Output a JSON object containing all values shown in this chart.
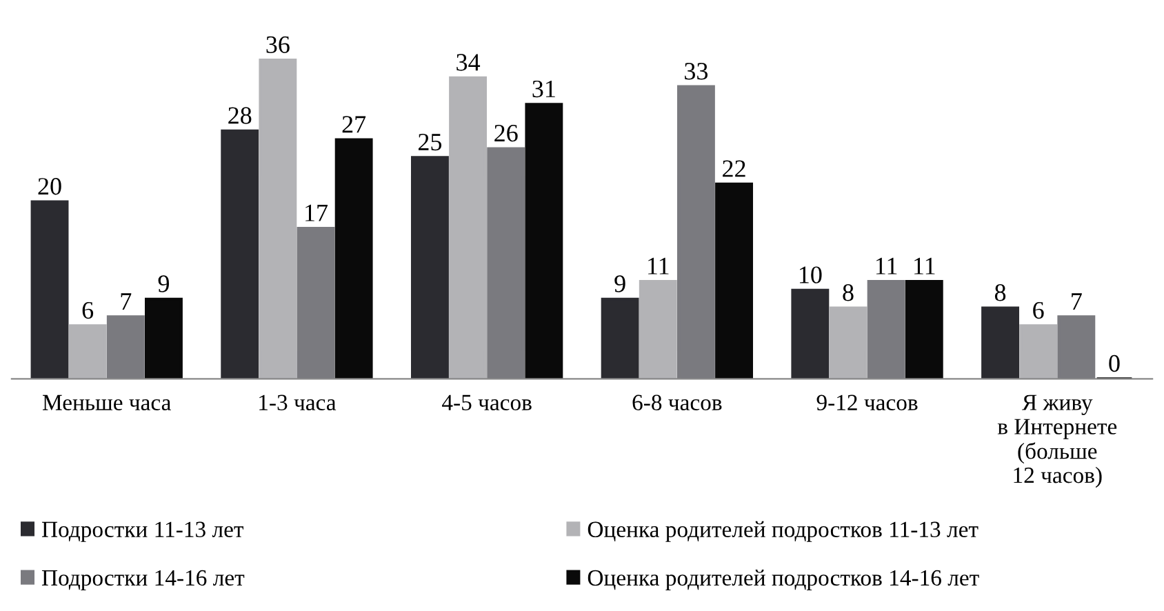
{
  "chart_data": {
    "type": "bar",
    "categories": [
      "Меньше часа",
      "1-3 часа",
      "4-5 часов",
      "6-8 часов",
      "9-12 часов",
      "Я живу\nв Интернете\n(больше\n12 часов)"
    ],
    "series": [
      {
        "name": "Подростки 11-13 лет",
        "color": "#2b2b30",
        "values": [
          20,
          28,
          25,
          9,
          10,
          8
        ]
      },
      {
        "name": "Оценка родителей подростков 11-13 лет",
        "color": "#b3b3b6",
        "values": [
          6,
          36,
          34,
          11,
          8,
          6
        ]
      },
      {
        "name": "Подростки 14-16 лет",
        "color": "#7a7a7f",
        "values": [
          7,
          17,
          26,
          33,
          11,
          7
        ]
      },
      {
        "name": "Оценка родителей подростков 14-16 лет",
        "color": "#0a0a0a",
        "values": [
          9,
          27,
          31,
          22,
          11,
          0
        ]
      }
    ],
    "data_labels": true,
    "legend": "bottom",
    "grid": false
  }
}
